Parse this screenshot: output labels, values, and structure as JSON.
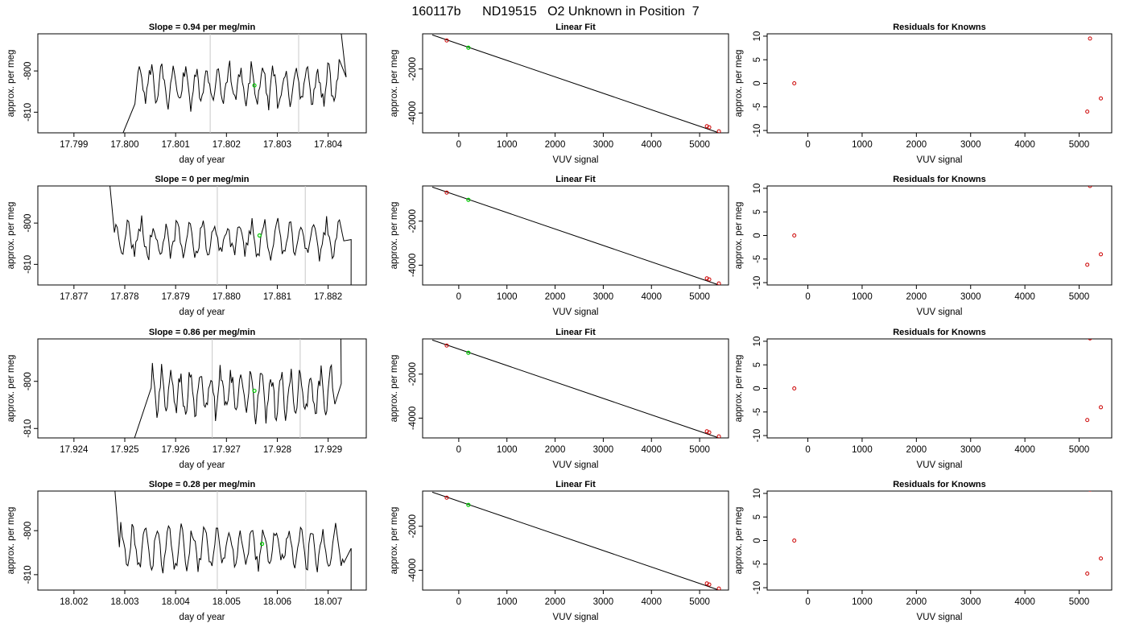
{
  "figure": {
    "title": "160117b      ND19515   O2 Unknown in Position  7",
    "colors": {
      "trace": "#000000",
      "vline": "#c8c8c8",
      "marker": "#00cc00",
      "known": "#cc0000",
      "fitline": "#000000"
    }
  },
  "chart_data": [
    {
      "type": "line",
      "row": 1,
      "title": "Slope =  0.94  per meg/min",
      "xlabel": "day of year",
      "ylabel": "approx. per meg",
      "xlim": [
        17.79829,
        17.80475
      ],
      "ylim": [
        -815,
        -791
      ],
      "xticks": [
        17.799,
        17.8,
        17.801,
        17.802,
        17.803,
        17.804
      ],
      "xticklabels": [
        "17.799",
        "17.800",
        "17.801",
        "17.802",
        "17.803",
        "17.804"
      ],
      "yticks": [
        -810,
        -800
      ],
      "yticklabels": [
        "-810",
        "-800"
      ],
      "trace": {
        "start": 17.7998,
        "end": 17.8044,
        "level": -803.5,
        "amplitude": 4.5,
        "dips": [
          [
            17.7998,
            -820
          ],
          [
            17.8002,
            -808
          ]
        ],
        "riseEnd": [
          17.80425,
          -790
        ]
      },
      "vlines": [
        17.80168,
        17.80342
      ],
      "marker": [
        17.80255,
        -803.5
      ]
    },
    {
      "type": "scatter",
      "row": 1,
      "title": "Linear Fit",
      "xlabel": "VUV signal",
      "ylabel": "approx. per meg",
      "xlim": [
        -750,
        5600
      ],
      "ylim": [
        -4900,
        -400
      ],
      "xticks": [
        0,
        1000,
        2000,
        3000,
        4000,
        5000
      ],
      "xticklabels": [
        "0",
        "1000",
        "2000",
        "3000",
        "4000",
        "5000"
      ],
      "yticks": [
        -4000,
        -2000
      ],
      "yticklabels": [
        "-4000",
        "-2000"
      ],
      "line": [
        [
          -550,
          -450
        ],
        [
          5400,
          -4900
        ]
      ],
      "knowns": [
        [
          -250,
          -700
        ],
        [
          5150,
          -4600
        ],
        [
          5200,
          -4650
        ],
        [
          5400,
          -4830
        ]
      ],
      "unknown": [
        [
          200,
          -1030
        ]
      ]
    },
    {
      "type": "scatter",
      "row": 1,
      "title": "Residuals for Knowns",
      "xlabel": "VUV signal",
      "ylabel": "approx. per meg",
      "xlim": [
        -750,
        5600
      ],
      "ylim": [
        -10.5,
        10.5
      ],
      "xticks": [
        0,
        1000,
        2000,
        3000,
        4000,
        5000
      ],
      "xticklabels": [
        "0",
        "1000",
        "2000",
        "3000",
        "4000",
        "5000"
      ],
      "yticks": [
        -10,
        -5,
        0,
        5,
        10
      ],
      "yticklabels": [
        "-10",
        "-5",
        "0",
        "5",
        "10"
      ],
      "points": [
        [
          -250,
          0
        ],
        [
          5200,
          9.5
        ],
        [
          5150,
          -6
        ],
        [
          5400,
          -3.2
        ]
      ]
    },
    {
      "type": "line",
      "row": 2,
      "title": "Slope =  0  per meg/min",
      "xlabel": "day of year",
      "ylabel": "approx. per meg",
      "xlim": [
        17.87629,
        17.88275
      ],
      "ylim": [
        -815,
        -791
      ],
      "xticks": [
        17.877,
        17.878,
        17.879,
        17.88,
        17.881,
        17.882
      ],
      "xticklabels": [
        "17.877",
        "17.878",
        "17.879",
        "17.880",
        "17.881",
        "17.882"
      ],
      "yticks": [
        -810,
        -800
      ],
      "yticklabels": [
        "-810",
        "-800"
      ],
      "trace": {
        "start": 17.8777,
        "end": 17.8825,
        "level": -804,
        "amplitude": 4,
        "startFrom": [
          17.8777,
          -790
        ],
        "fallEnd": [
          17.88245,
          -820
        ]
      },
      "vlines": [
        17.87982,
        17.88155
      ],
      "marker": [
        17.88065,
        -803
      ]
    },
    {
      "type": "scatter",
      "row": 2,
      "title": "Linear Fit",
      "xlabel": "VUV signal",
      "ylabel": "approx. per meg",
      "xlim": [
        -750,
        5600
      ],
      "ylim": [
        -4900,
        -400
      ],
      "xticks": [
        0,
        1000,
        2000,
        3000,
        4000,
        5000
      ],
      "xticklabels": [
        "0",
        "1000",
        "2000",
        "3000",
        "4000",
        "5000"
      ],
      "yticks": [
        -4000,
        -2000
      ],
      "yticklabels": [
        "-4000",
        "-2000"
      ],
      "line": [
        [
          -550,
          -450
        ],
        [
          5400,
          -4900
        ]
      ],
      "knowns": [
        [
          -250,
          -700
        ],
        [
          5150,
          -4600
        ],
        [
          5200,
          -4650
        ],
        [
          5400,
          -4830
        ]
      ],
      "unknown": [
        [
          200,
          -1030
        ]
      ]
    },
    {
      "type": "scatter",
      "row": 2,
      "title": "Residuals for Knowns",
      "xlabel": "VUV signal",
      "ylabel": "approx. per meg",
      "xlim": [
        -750,
        5600
      ],
      "ylim": [
        -10.5,
        10.5
      ],
      "xticks": [
        0,
        1000,
        2000,
        3000,
        4000,
        5000
      ],
      "xticklabels": [
        "0",
        "1000",
        "2000",
        "3000",
        "4000",
        "5000"
      ],
      "yticks": [
        -10,
        -5,
        0,
        5,
        10
      ],
      "yticklabels": [
        "-10",
        "-5",
        "0",
        "5",
        "10"
      ],
      "points": [
        [
          -250,
          0
        ],
        [
          5200,
          10.5
        ],
        [
          5150,
          -6.2
        ],
        [
          5400,
          -4
        ]
      ]
    },
    {
      "type": "line",
      "row": 3,
      "title": "Slope =  0.86  per meg/min",
      "xlabel": "day of year",
      "ylabel": "approx. per meg",
      "xlim": [
        17.92329,
        17.92975
      ],
      "ylim": [
        -812,
        -791
      ],
      "xticks": [
        17.924,
        17.925,
        17.926,
        17.927,
        17.928,
        17.929
      ],
      "xticklabels": [
        "17.924",
        "17.925",
        "17.926",
        "17.927",
        "17.928",
        "17.929"
      ],
      "yticks": [
        -810,
        -800
      ],
      "yticklabels": [
        "-810",
        "-800"
      ],
      "trace": {
        "start": 17.9251,
        "end": 17.9293,
        "level": -802.5,
        "amplitude": 4.5,
        "dips": [
          [
            17.9251,
            -815
          ]
        ],
        "riseEnd": [
          17.92925,
          -790
        ]
      },
      "vlines": [
        17.92672,
        17.92845
      ],
      "marker": [
        17.92755,
        -802
      ]
    },
    {
      "type": "scatter",
      "row": 3,
      "title": "Linear Fit",
      "xlabel": "VUV signal",
      "ylabel": "approx. per meg",
      "xlim": [
        -750,
        5600
      ],
      "ylim": [
        -4900,
        -400
      ],
      "xticks": [
        0,
        1000,
        2000,
        3000,
        4000,
        5000
      ],
      "xticklabels": [
        "0",
        "1000",
        "2000",
        "3000",
        "4000",
        "5000"
      ],
      "yticks": [
        -4000,
        -2000
      ],
      "yticklabels": [
        "-4000",
        "-2000"
      ],
      "line": [
        [
          -550,
          -450
        ],
        [
          5400,
          -4900
        ]
      ],
      "knowns": [
        [
          -250,
          -700
        ],
        [
          5150,
          -4600
        ],
        [
          5200,
          -4650
        ],
        [
          5400,
          -4830
        ]
      ],
      "unknown": [
        [
          200,
          -1030
        ]
      ]
    },
    {
      "type": "scatter",
      "row": 3,
      "title": "Residuals for Knowns",
      "xlabel": "VUV signal",
      "ylabel": "approx. per meg",
      "xlim": [
        -750,
        5600
      ],
      "ylim": [
        -10.5,
        10.5
      ],
      "xticks": [
        0,
        1000,
        2000,
        3000,
        4000,
        5000
      ],
      "xticklabels": [
        "0",
        "1000",
        "2000",
        "3000",
        "4000",
        "5000"
      ],
      "yticks": [
        -10,
        -5,
        0,
        5,
        10
      ],
      "yticklabels": [
        "-10",
        "-5",
        "0",
        "5",
        "10"
      ],
      "points": [
        [
          -250,
          0
        ],
        [
          5200,
          10.6
        ],
        [
          5150,
          -6.7
        ],
        [
          5400,
          -4
        ]
      ]
    },
    {
      "type": "line",
      "row": 4,
      "title": "Slope =  0.28  per meg/min",
      "xlabel": "day of year",
      "ylabel": "approx. per meg",
      "xlim": [
        18.00129,
        18.00775
      ],
      "ylim": [
        -813.5,
        -791
      ],
      "xticks": [
        18.002,
        18.003,
        18.004,
        18.005,
        18.006,
        18.007
      ],
      "xticklabels": [
        "18.002",
        "18.003",
        "18.004",
        "18.005",
        "18.006",
        "18.007"
      ],
      "yticks": [
        -810,
        -800
      ],
      "yticklabels": [
        "-810",
        "-800"
      ],
      "trace": {
        "start": 18.0028,
        "end": 18.0075,
        "level": -804,
        "amplitude": 4.5,
        "startFrom": [
          18.0028,
          -790
        ],
        "fallEnd": [
          18.00745,
          -820
        ]
      },
      "vlines": [
        18.00482,
        18.00656
      ],
      "marker": [
        18.0057,
        -803
      ]
    },
    {
      "type": "scatter",
      "row": 4,
      "title": "Linear Fit",
      "xlabel": "VUV signal",
      "ylabel": "approx. per meg",
      "xlim": [
        -750,
        5600
      ],
      "ylim": [
        -4900,
        -400
      ],
      "xticks": [
        0,
        1000,
        2000,
        3000,
        4000,
        5000
      ],
      "xticklabels": [
        "0",
        "1000",
        "2000",
        "3000",
        "4000",
        "5000"
      ],
      "yticks": [
        -4000,
        -2000
      ],
      "yticklabels": [
        "-4000",
        "-2000"
      ],
      "line": [
        [
          -550,
          -450
        ],
        [
          5400,
          -4900
        ]
      ],
      "knowns": [
        [
          -250,
          -700
        ],
        [
          5150,
          -4600
        ],
        [
          5200,
          -4650
        ],
        [
          5400,
          -4830
        ]
      ],
      "unknown": [
        [
          200,
          -1030
        ]
      ]
    },
    {
      "type": "scatter",
      "row": 4,
      "title": "Residuals for Knowns",
      "xlabel": "VUV signal",
      "ylabel": "approx. per meg",
      "xlim": [
        -750,
        5600
      ],
      "ylim": [
        -10.5,
        10.5
      ],
      "xticks": [
        0,
        1000,
        2000,
        3000,
        4000,
        5000
      ],
      "xticklabels": [
        "0",
        "1000",
        "2000",
        "3000",
        "4000",
        "5000"
      ],
      "yticks": [
        -10,
        -5,
        0,
        5,
        10
      ],
      "yticklabels": [
        "-10",
        "-5",
        "0",
        "5",
        "10"
      ],
      "points": [
        [
          -250,
          0
        ],
        [
          5200,
          10.8
        ],
        [
          5150,
          -7
        ],
        [
          5400,
          -3.8
        ]
      ]
    }
  ]
}
